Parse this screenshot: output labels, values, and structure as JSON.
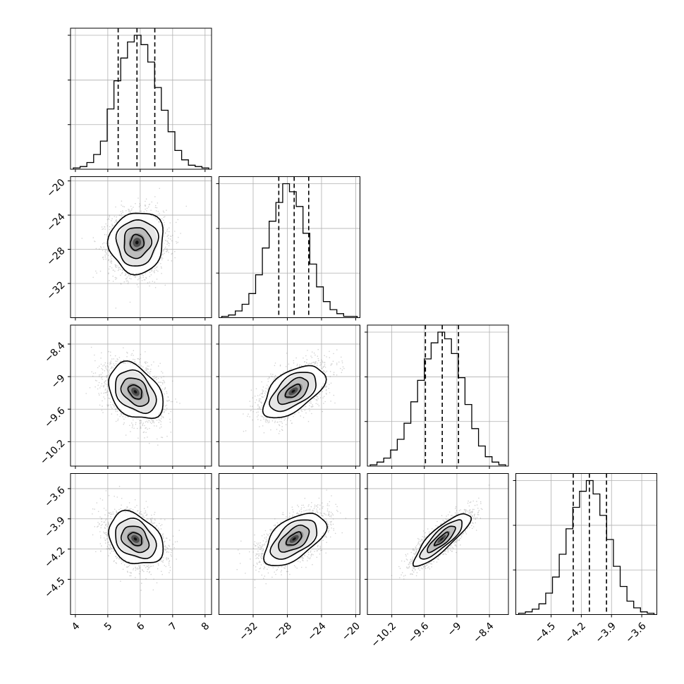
{
  "chart_data": {
    "type": "corner",
    "title": "",
    "ndim": 4,
    "grid": true,
    "params": [
      {
        "xlabel": "",
        "range": [
          3.85,
          8.2
        ],
        "ticks": [
          4,
          5,
          6,
          7,
          8
        ],
        "quantiles": [
          5.32,
          5.9,
          6.45
        ],
        "hist": [
          1,
          2,
          5,
          11,
          21,
          45,
          66,
          83,
          95,
          100,
          93,
          80,
          61,
          44,
          28,
          14,
          7,
          3,
          2,
          1
        ]
      },
      {
        "xlabel": "",
        "range": [
          -36,
          -19.5
        ],
        "ticks": [
          -32,
          -28,
          -24,
          -20
        ],
        "quantiles": [
          -29,
          -27.2,
          -25.5
        ],
        "hist": [
          1,
          2,
          5,
          10,
          18,
          32,
          52,
          72,
          86,
          100,
          94,
          83,
          63,
          40,
          23,
          12,
          6,
          3,
          1,
          1
        ]
      },
      {
        "xlabel": "",
        "range": [
          -10.65,
          -8.05
        ],
        "ticks": [
          -10.2,
          -9.6,
          -9.0,
          -8.4
        ],
        "quantiles": [
          -9.58,
          -9.27,
          -8.97
        ],
        "hist": [
          1,
          3,
          6,
          12,
          20,
          32,
          48,
          64,
          80,
          92,
          100,
          95,
          84,
          66,
          46,
          28,
          15,
          7,
          3,
          1
        ]
      },
      {
        "xlabel": "",
        "range": [
          -4.85,
          -3.45
        ],
        "ticks": [
          -4.5,
          -4.2,
          -3.9,
          -3.6
        ],
        "quantiles": [
          -4.28,
          -4.12,
          -3.95
        ],
        "hist": [
          1,
          2,
          4,
          8,
          16,
          28,
          45,
          64,
          80,
          92,
          100,
          90,
          74,
          56,
          36,
          21,
          10,
          5,
          2,
          1
        ]
      }
    ],
    "ylabels": [
      "",
      "",
      ""
    ],
    "pairs": [
      {
        "i": 1,
        "j": 0,
        "mean": [
          5.9,
          -27.2
        ],
        "sd": [
          0.42,
          1.8
        ],
        "rho": 0.05,
        "bin_scale": 1.0
      },
      {
        "i": 2,
        "j": 0,
        "mean": [
          5.85,
          -9.28
        ],
        "sd": [
          0.42,
          0.26
        ],
        "rho": -0.35,
        "bin_scale": 1.0
      },
      {
        "i": 2,
        "j": 1,
        "mean": [
          -27.3,
          -9.27
        ],
        "sd": [
          1.8,
          0.24
        ],
        "rho": 0.55,
        "bin_scale": 1.0
      },
      {
        "i": 3,
        "j": 0,
        "mean": [
          5.85,
          -4.1
        ],
        "sd": [
          0.42,
          0.13
        ],
        "rho": -0.3,
        "bin_scale": 1.0
      },
      {
        "i": 3,
        "j": 1,
        "mean": [
          -27.2,
          -4.1
        ],
        "sd": [
          1.8,
          0.13
        ],
        "rho": 0.55,
        "bin_scale": 1.0
      },
      {
        "i": 3,
        "j": 2,
        "mean": [
          -9.28,
          -4.1
        ],
        "sd": [
          0.26,
          0.13
        ],
        "rho": 0.85,
        "bin_scale": 1.0
      }
    ],
    "contour_levels_sigma": [
      0.5,
      1.0,
      1.5,
      2.0
    ]
  },
  "colors": {
    "line": "#000000",
    "grid": "#b0b0b0",
    "points": "#7f7f7f",
    "axes": "#000000"
  }
}
